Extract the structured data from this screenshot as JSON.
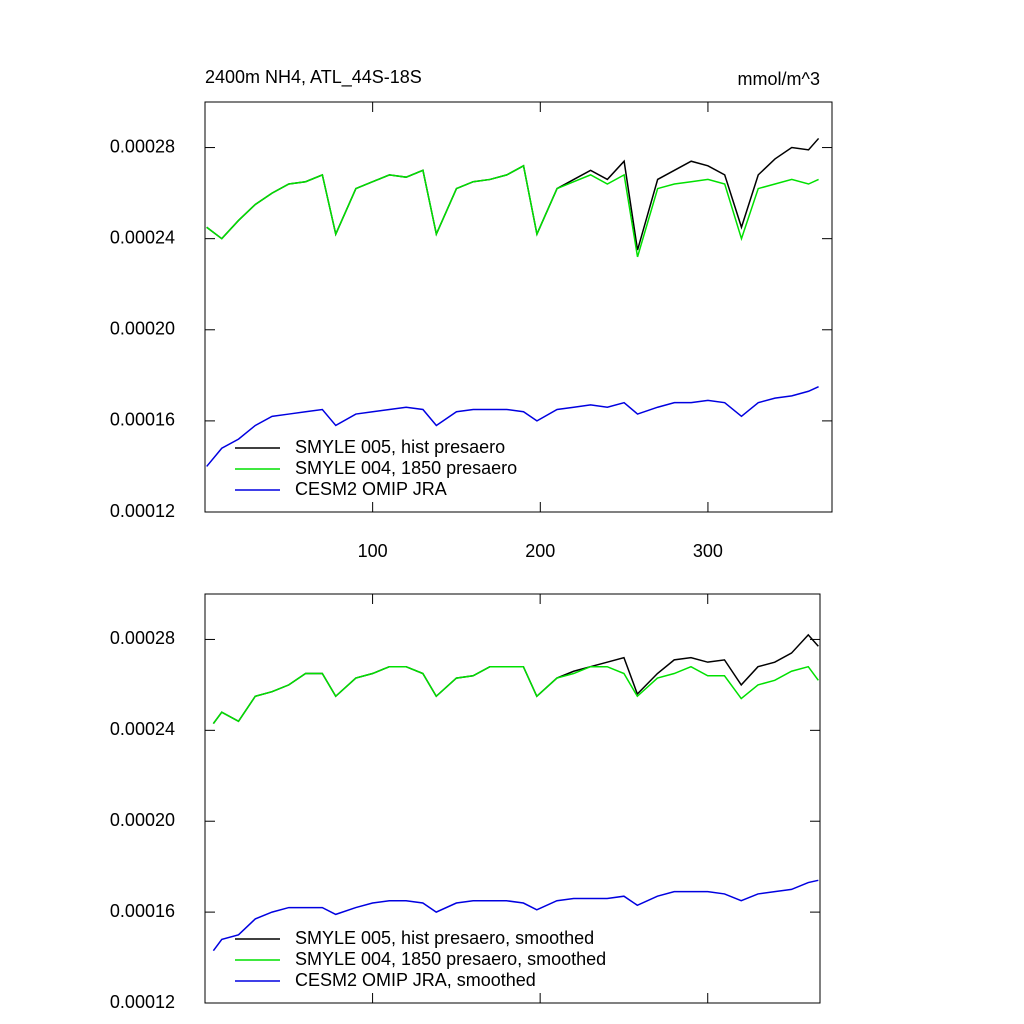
{
  "chart_data": [
    {
      "type": "line",
      "title": "2400m NH4, ATL_44S-18S",
      "units": "mmol/m^3",
      "x": [
        1,
        10,
        20,
        30,
        40,
        50,
        60,
        70,
        78,
        90,
        100,
        110,
        120,
        130,
        138,
        150,
        160,
        170,
        180,
        190,
        198,
        210,
        220,
        230,
        240,
        250,
        258,
        270,
        280,
        290,
        300,
        310,
        320,
        330,
        340,
        350,
        360,
        366
      ],
      "series": [
        {
          "name": "SMYLE 005, hist presaero",
          "color": "#000000",
          "values": [
            0.000245,
            0.00024,
            0.000248,
            0.000255,
            0.00026,
            0.000264,
            0.000265,
            0.000268,
            0.000242,
            0.000262,
            0.000265,
            0.000268,
            0.000267,
            0.00027,
            0.000242,
            0.000262,
            0.000265,
            0.000266,
            0.000268,
            0.000272,
            0.000242,
            0.000262,
            0.000266,
            0.00027,
            0.000266,
            0.000274,
            0.000235,
            0.000266,
            0.00027,
            0.000274,
            0.000272,
            0.000268,
            0.000245,
            0.000268,
            0.000275,
            0.00028,
            0.000279,
            0.000284
          ]
        },
        {
          "name": "SMYLE 004, 1850 presaero",
          "color": "#00e000",
          "values": [
            0.000245,
            0.00024,
            0.000248,
            0.000255,
            0.00026,
            0.000264,
            0.000265,
            0.000268,
            0.000242,
            0.000262,
            0.000265,
            0.000268,
            0.000267,
            0.00027,
            0.000242,
            0.000262,
            0.000265,
            0.000266,
            0.000268,
            0.000272,
            0.000242,
            0.000262,
            0.000265,
            0.000268,
            0.000264,
            0.000268,
            0.000232,
            0.000262,
            0.000264,
            0.000265,
            0.000266,
            0.000264,
            0.00024,
            0.000262,
            0.000264,
            0.000266,
            0.000264,
            0.000266
          ]
        },
        {
          "name": "CESM2 OMIP JRA",
          "color": "#0000e0",
          "values": [
            0.00014,
            0.000148,
            0.000152,
            0.000158,
            0.000162,
            0.000163,
            0.000164,
            0.000165,
            0.000158,
            0.000163,
            0.000164,
            0.000165,
            0.000166,
            0.000165,
            0.000158,
            0.000164,
            0.000165,
            0.000165,
            0.000165,
            0.000164,
            0.00016,
            0.000165,
            0.000166,
            0.000167,
            0.000166,
            0.000168,
            0.000163,
            0.000166,
            0.000168,
            0.000168,
            0.000169,
            0.000168,
            0.000162,
            0.000168,
            0.00017,
            0.000171,
            0.000173,
            0.000175
          ]
        }
      ],
      "xlim": [
        0,
        374
      ],
      "xticks": [
        100,
        200,
        300
      ],
      "xtick_labels": true,
      "ylim": [
        0.00012,
        0.0003
      ],
      "yticks": [
        0.00012,
        0.00016,
        {
          "value": 0.0002,
          "label": "0.00020"
        },
        0.00024,
        0.00028
      ],
      "legend": "lower left"
    },
    {
      "type": "line",
      "x": [
        5,
        10,
        20,
        30,
        40,
        50,
        60,
        70,
        78,
        90,
        100,
        110,
        120,
        130,
        138,
        150,
        160,
        170,
        180,
        190,
        198,
        210,
        220,
        230,
        240,
        250,
        258,
        270,
        280,
        290,
        300,
        310,
        320,
        330,
        340,
        350,
        360,
        366
      ],
      "series": [
        {
          "name": "SMYLE 005, hist presaero, smoothed",
          "color": "#000000",
          "values": [
            0.000243,
            0.000248,
            0.000244,
            0.000255,
            0.000257,
            0.00026,
            0.000265,
            0.000265,
            0.000255,
            0.000263,
            0.000265,
            0.000268,
            0.000268,
            0.000265,
            0.000255,
            0.000263,
            0.000264,
            0.000268,
            0.000268,
            0.000268,
            0.000255,
            0.000263,
            0.000266,
            0.000268,
            0.00027,
            0.000272,
            0.000256,
            0.000265,
            0.000271,
            0.000272,
            0.00027,
            0.000271,
            0.00026,
            0.000268,
            0.00027,
            0.000274,
            0.000282,
            0.000277
          ]
        },
        {
          "name": "SMYLE 004, 1850 presaero, smoothed",
          "color": "#00e000",
          "values": [
            0.000243,
            0.000248,
            0.000244,
            0.000255,
            0.000257,
            0.00026,
            0.000265,
            0.000265,
            0.000255,
            0.000263,
            0.000265,
            0.000268,
            0.000268,
            0.000265,
            0.000255,
            0.000263,
            0.000264,
            0.000268,
            0.000268,
            0.000268,
            0.000255,
            0.000263,
            0.000265,
            0.000268,
            0.000268,
            0.000265,
            0.000255,
            0.000263,
            0.000265,
            0.000268,
            0.000264,
            0.000264,
            0.000254,
            0.00026,
            0.000262,
            0.000266,
            0.000268,
            0.000262
          ]
        },
        {
          "name": "CESM2 OMIP JRA, smoothed",
          "color": "#0000e0",
          "values": [
            0.000143,
            0.000148,
            0.00015,
            0.000157,
            0.00016,
            0.000162,
            0.000162,
            0.000162,
            0.000159,
            0.000162,
            0.000164,
            0.000165,
            0.000165,
            0.000164,
            0.00016,
            0.000164,
            0.000165,
            0.000165,
            0.000165,
            0.000164,
            0.000161,
            0.000165,
            0.000166,
            0.000166,
            0.000166,
            0.000167,
            0.000163,
            0.000167,
            0.000169,
            0.000169,
            0.000169,
            0.000168,
            0.000165,
            0.000168,
            0.000169,
            0.00017,
            0.000173,
            0.000174
          ]
        }
      ],
      "xlim": [
        0,
        367
      ],
      "xticks": [
        100,
        200,
        300
      ],
      "xtick_labels": false,
      "ylim": [
        0.00012,
        0.0003
      ],
      "yticks": [
        0.00012,
        0.00016,
        {
          "value": 0.0002,
          "label": "0.00020"
        },
        0.00024,
        0.00028
      ],
      "legend": "lower left"
    }
  ]
}
